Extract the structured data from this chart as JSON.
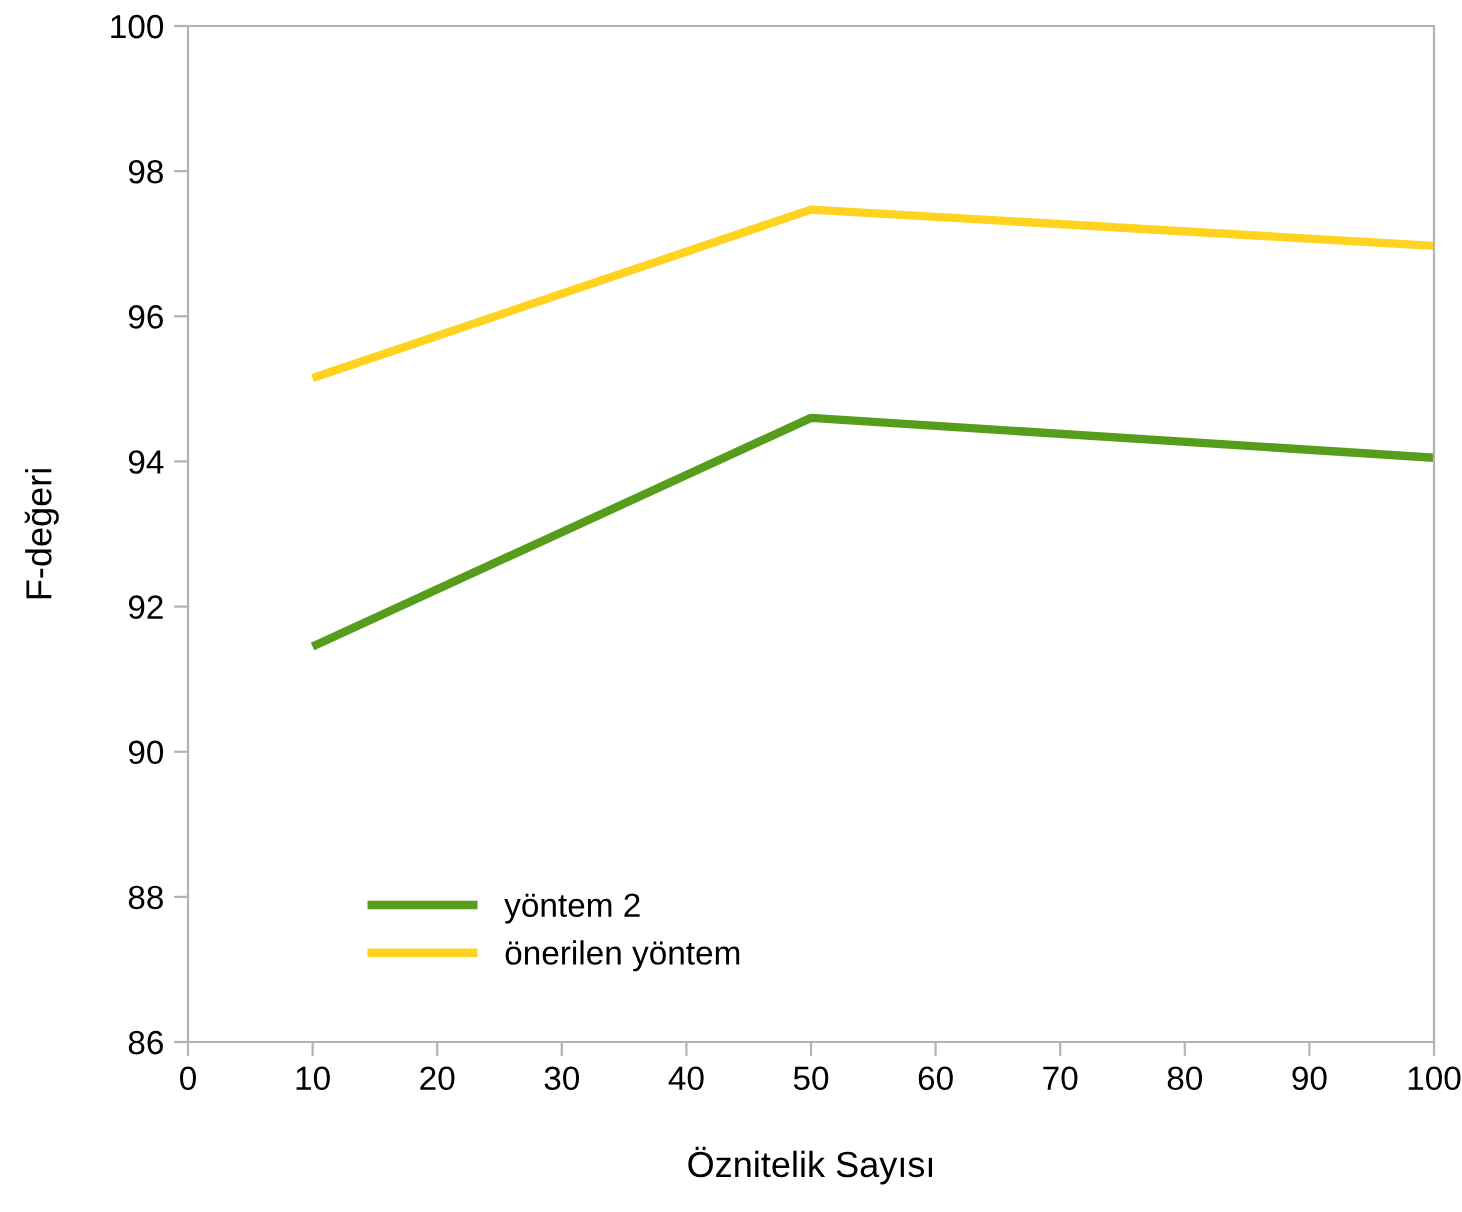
{
  "chart_data": {
    "type": "line",
    "xlabel": "Öznitelik Sayısı",
    "ylabel": "F-değeri",
    "x": [
      10,
      50,
      100
    ],
    "series": [
      {
        "name": "yöntem 2",
        "color": "#579d1c",
        "values": [
          91.45,
          94.6,
          94.05
        ]
      },
      {
        "name": "önerilen yöntem",
        "color": "#ffd320",
        "values": [
          95.15,
          97.47,
          96.97
        ]
      }
    ],
    "xlim": [
      0,
      100
    ],
    "xticks": [
      0,
      10,
      20,
      30,
      40,
      50,
      60,
      70,
      80,
      90,
      100
    ],
    "ylim": [
      86,
      100
    ],
    "yticks": [
      86,
      88,
      90,
      92,
      94,
      96,
      98,
      100
    ],
    "grid": false,
    "legend": "bottom left",
    "marker": "none",
    "line_style": "solid"
  }
}
